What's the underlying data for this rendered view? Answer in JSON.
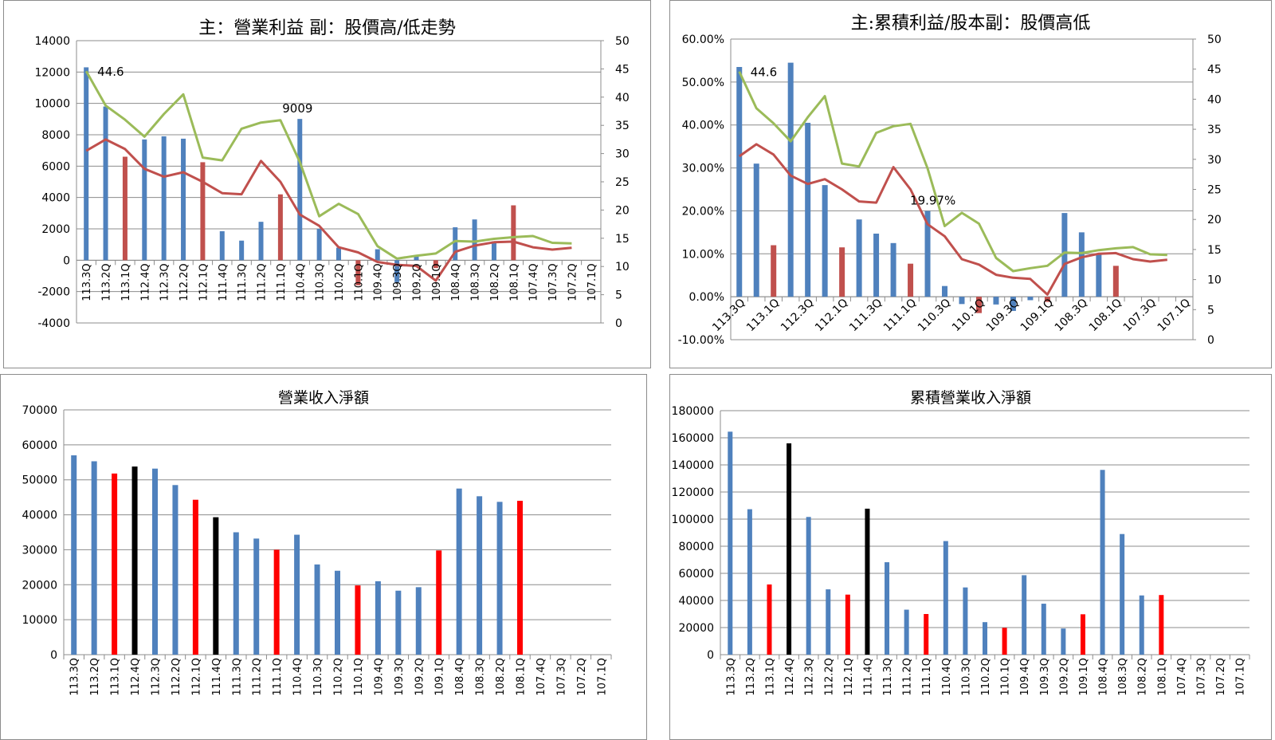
{
  "quarters": [
    "113.3Q",
    "113.2Q",
    "113.1Q",
    "112.4Q",
    "112.3Q",
    "112.2Q",
    "112.1Q",
    "111.4Q",
    "111.3Q",
    "111.2Q",
    "111.1Q",
    "110.4Q",
    "110.3Q",
    "110.2Q",
    "110.1Q",
    "109.4Q",
    "109.3Q",
    "109.2Q",
    "109.1Q",
    "108.4Q",
    "108.3Q",
    "108.2Q",
    "108.1Q",
    "107.4Q",
    "107.3Q",
    "107.2Q",
    "107.1Q"
  ],
  "colors": {
    "blue": "#4f81bd",
    "red_dark": "#c0504d",
    "green": "#9bbb59",
    "red": "#ff0000",
    "black": "#000000",
    "grid": "#8c8c8c"
  },
  "chart_data": [
    {
      "id": "op_profit",
      "type": "bar+line",
      "title": "主：營業利益 副：股價高/低走勢",
      "ylim": [
        -4000,
        14000
      ],
      "y_ticks": [
        "-4000",
        "-2000",
        "0",
        "2000",
        "4000",
        "6000",
        "8000",
        "10000",
        "12000",
        "14000"
      ],
      "y2lim": [
        0,
        50
      ],
      "y2_ticks": [
        "0",
        "5",
        "10",
        "15",
        "20",
        "25",
        "30",
        "35",
        "40",
        "45",
        "50"
      ],
      "bars": [
        12300,
        9800,
        6600,
        7700,
        7900,
        7750,
        6250,
        1850,
        1250,
        2450,
        4200,
        9009,
        2000,
        800,
        -1600,
        700,
        -1400,
        250,
        -500,
        2100,
        2600,
        1200,
        3500,
        null,
        null,
        null,
        null
      ],
      "bar_colors": [
        "blue",
        "blue",
        "red_dark",
        "blue",
        "blue",
        "blue",
        "red_dark",
        "blue",
        "blue",
        "blue",
        "red_dark",
        "blue",
        "blue",
        "blue",
        "red_dark",
        "blue",
        "blue",
        "blue",
        "red_dark",
        "blue",
        "blue",
        "blue",
        "red_dark",
        "blue",
        "blue",
        "blue",
        "red_dark"
      ],
      "series": [
        {
          "color": "green",
          "values": [
            44.6,
            38.5,
            36,
            33,
            37,
            40.5,
            29.3,
            28.8,
            34.4,
            35.5,
            35.9,
            28.5,
            18.9,
            21.1,
            19.3,
            13.6,
            11.4,
            11.9,
            12.3,
            14.5,
            14.4,
            14.9,
            15.2,
            15.4,
            14.2,
            14.1,
            null
          ]
        },
        {
          "color": "red_dark",
          "values": [
            30.5,
            32.5,
            30.8,
            27.3,
            25.9,
            26.7,
            25.0,
            23.0,
            22.8,
            28.7,
            25.0,
            19.2,
            17.2,
            13.4,
            12.5,
            10.8,
            10.3,
            10.1,
            7.5,
            12.6,
            13.7,
            14.3,
            14.4,
            13.4,
            13.0,
            13.3,
            null
          ]
        }
      ],
      "annotations": [
        {
          "text": "44.6",
          "index": 0,
          "y2": 44.6
        },
        {
          "text": "9009",
          "index": 11,
          "y": 9009
        }
      ]
    },
    {
      "id": "eps_ratio",
      "type": "bar+line",
      "title": "主:累積利益/股本副：股價高低",
      "ylim": [
        -10,
        60
      ],
      "y_ticks": [
        "-10.00%",
        "0.00%",
        "10.00%",
        "20.00%",
        "30.00%",
        "40.00%",
        "50.00%",
        "60.00%"
      ],
      "y2lim": [
        0,
        50
      ],
      "y2_ticks": [
        "0",
        "5",
        "10",
        "15",
        "20",
        "25",
        "30",
        "35",
        "40",
        "45",
        "50"
      ],
      "x_labels": [
        "113.3Q",
        "113.1Q",
        "112.3Q",
        "112.1Q",
        "111.3Q",
        "111.1Q",
        "110.3Q",
        "110.1Q",
        "109.3Q",
        "109.1Q",
        "108.3Q",
        "108.1Q",
        "107.3Q",
        "107.1Q"
      ],
      "bars": [
        53.5,
        31,
        12,
        54.5,
        40.5,
        26,
        11.5,
        18,
        14.7,
        12.5,
        7.7,
        19.97,
        2.5,
        -1.7,
        -3.8,
        -1.8,
        -3.3,
        -0.8,
        -1.2,
        19.5,
        15,
        10,
        7.2,
        null,
        null,
        null,
        null
      ],
      "bar_colors": [
        "blue",
        "blue",
        "red_dark",
        "blue",
        "blue",
        "blue",
        "red_dark",
        "blue",
        "blue",
        "blue",
        "red_dark",
        "blue",
        "blue",
        "blue",
        "red_dark",
        "blue",
        "blue",
        "blue",
        "red_dark",
        "blue",
        "blue",
        "blue",
        "red_dark",
        "blue",
        "blue",
        "blue",
        "red_dark"
      ],
      "series": [
        {
          "color": "green",
          "values": [
            44.6,
            38.5,
            36,
            33,
            37,
            40.5,
            29.3,
            28.8,
            34.4,
            35.5,
            35.9,
            28.5,
            18.9,
            21.1,
            19.3,
            13.6,
            11.4,
            11.9,
            12.3,
            14.5,
            14.4,
            14.9,
            15.2,
            15.4,
            14.2,
            14.1,
            null
          ]
        },
        {
          "color": "red_dark",
          "values": [
            30.5,
            32.5,
            30.8,
            27.3,
            25.9,
            26.7,
            25.0,
            23.0,
            22.8,
            28.7,
            25.0,
            19.2,
            17.2,
            13.4,
            12.5,
            10.8,
            10.3,
            10.1,
            7.5,
            12.6,
            13.7,
            14.3,
            14.4,
            13.4,
            13.0,
            13.3,
            null
          ]
        }
      ],
      "annotations": [
        {
          "text": "44.6",
          "index": 0,
          "y2": 44.6
        },
        {
          "text": "19.97%",
          "index": 11,
          "y": 19.97
        }
      ]
    },
    {
      "id": "revenue",
      "type": "bar",
      "title": "營業收入淨額",
      "ylim": [
        0,
        70000
      ],
      "y_ticks": [
        "0",
        "10000",
        "20000",
        "30000",
        "40000",
        "50000",
        "60000",
        "70000"
      ],
      "bars": [
        57000,
        55300,
        51800,
        53800,
        53200,
        48500,
        44300,
        39300,
        35000,
        33200,
        30000,
        34300,
        25800,
        24000,
        19800,
        21000,
        18300,
        19300,
        29800,
        47500,
        45300,
        43700,
        44000,
        null,
        null,
        null,
        null
      ],
      "bar_colors": [
        "blue",
        "blue",
        "red",
        "black",
        "blue",
        "blue",
        "red",
        "black",
        "blue",
        "blue",
        "red",
        "blue",
        "blue",
        "blue",
        "red",
        "blue",
        "blue",
        "blue",
        "red",
        "blue",
        "blue",
        "blue",
        "red",
        "blue",
        "blue",
        "blue",
        "red"
      ]
    },
    {
      "id": "cum_revenue",
      "type": "bar",
      "title": "累積營業收入淨額",
      "ylim": [
        0,
        180000
      ],
      "y_ticks": [
        "0",
        "20000",
        "40000",
        "60000",
        "80000",
        "100000",
        "120000",
        "140000",
        "160000",
        "180000"
      ],
      "bars": [
        164500,
        107300,
        51800,
        155900,
        101600,
        48200,
        44300,
        107700,
        68200,
        33200,
        30000,
        83800,
        49600,
        24000,
        19800,
        58600,
        37600,
        19300,
        29800,
        136300,
        89000,
        43700,
        44000,
        null,
        null,
        null,
        null
      ],
      "bar_colors": [
        "blue",
        "blue",
        "red",
        "black",
        "blue",
        "blue",
        "red",
        "black",
        "blue",
        "blue",
        "red",
        "blue",
        "blue",
        "blue",
        "red",
        "blue",
        "blue",
        "blue",
        "red",
        "blue",
        "blue",
        "blue",
        "red",
        "blue",
        "blue",
        "blue",
        "red"
      ]
    }
  ]
}
